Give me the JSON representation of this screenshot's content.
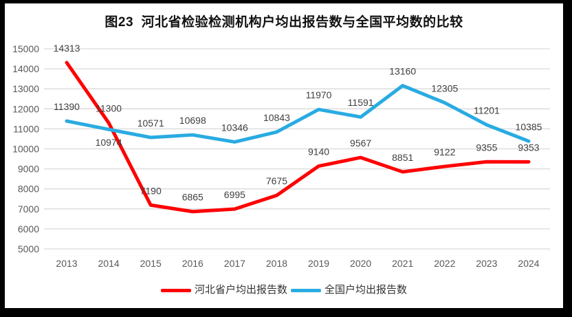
{
  "figure": {
    "title": "图23  河北省检验检测机构户均出报告数与全国平均数的比较"
  },
  "colors": {
    "background": "#FFFFFF",
    "frame": "#000000",
    "grid": "#D9D9D9",
    "axis_text": "#595959",
    "data_label_text": "#3F3F3F",
    "hebei_line": "#FE0000",
    "national_line": "#29ABE2"
  },
  "chart_data": {
    "type": "line",
    "title": "图23  河北省检验检测机构户均出报告数与全国平均数的比较",
    "categories": [
      "2013",
      "2014",
      "2015",
      "2016",
      "2017",
      "2018",
      "2019",
      "2020",
      "2021",
      "2022",
      "2023",
      "2024"
    ],
    "series": [
      {
        "name": "河北省户均出报告数",
        "color": "#FE0000",
        "values": [
          14313,
          11300,
          7190,
          6865,
          6995,
          7675,
          9140,
          9567,
          8851,
          9122,
          9355,
          9353
        ]
      },
      {
        "name": "全国户均出报告数",
        "color": "#29ABE2",
        "values": [
          11390,
          10974,
          10571,
          10698,
          10346,
          10843,
          11970,
          11591,
          13160,
          12305,
          11201,
          10385
        ]
      }
    ],
    "xlabel": "",
    "ylabel": "",
    "ylim": [
      5000,
      15000
    ],
    "yticks": [
      5000,
      6000,
      7000,
      8000,
      9000,
      10000,
      11000,
      12000,
      13000,
      14000,
      15000
    ],
    "grid": "horizontal",
    "data_labels": true,
    "legend_position": "bottom"
  }
}
